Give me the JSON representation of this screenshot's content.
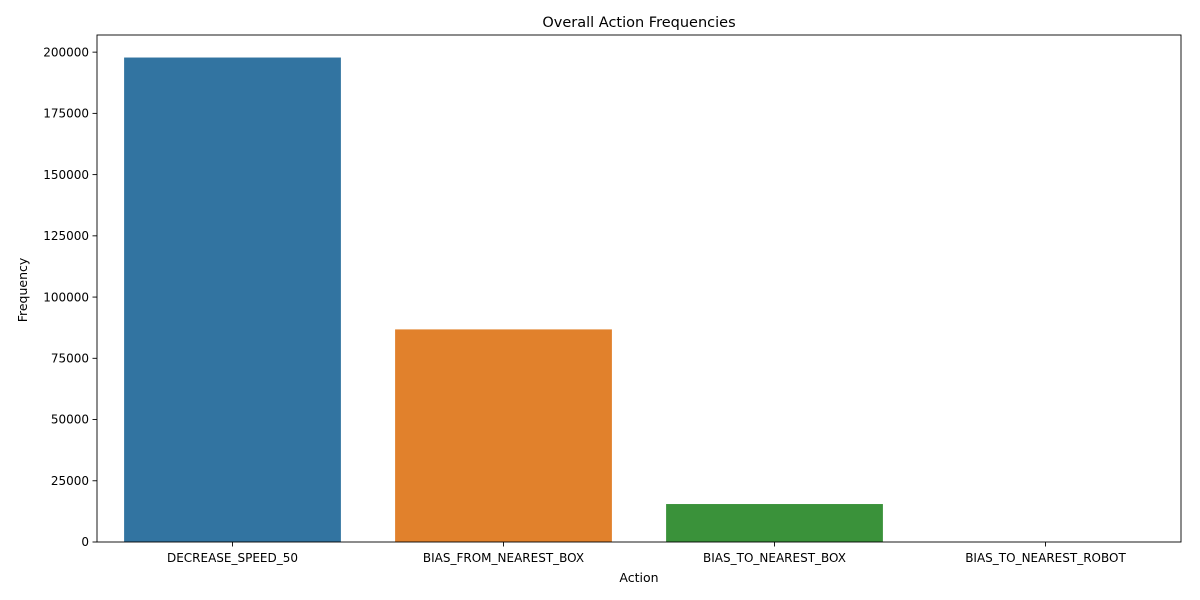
{
  "chart_data": {
    "type": "bar",
    "title": "Overall Action Frequencies",
    "xlabel": "Action",
    "ylabel": "Frequency",
    "categories": [
      "DECREASE_SPEED_50",
      "BIAS_FROM_NEAREST_BOX",
      "BIAS_TO_NEAREST_BOX",
      "BIAS_TO_NEAREST_ROBOT"
    ],
    "values": [
      197800,
      86800,
      15500,
      0
    ],
    "colors": [
      "#3274a1",
      "#e1812c",
      "#3a923a",
      "#c03d3e"
    ],
    "ylim": [
      0,
      207000
    ],
    "yticks": [
      0,
      25000,
      50000,
      75000,
      100000,
      125000,
      150000,
      175000,
      200000
    ],
    "ytick_labels": [
      "0",
      "25000",
      "50000",
      "75000",
      "100000",
      "125000",
      "150000",
      "175000",
      "200000"
    ],
    "grid": false,
    "legend": false
  }
}
